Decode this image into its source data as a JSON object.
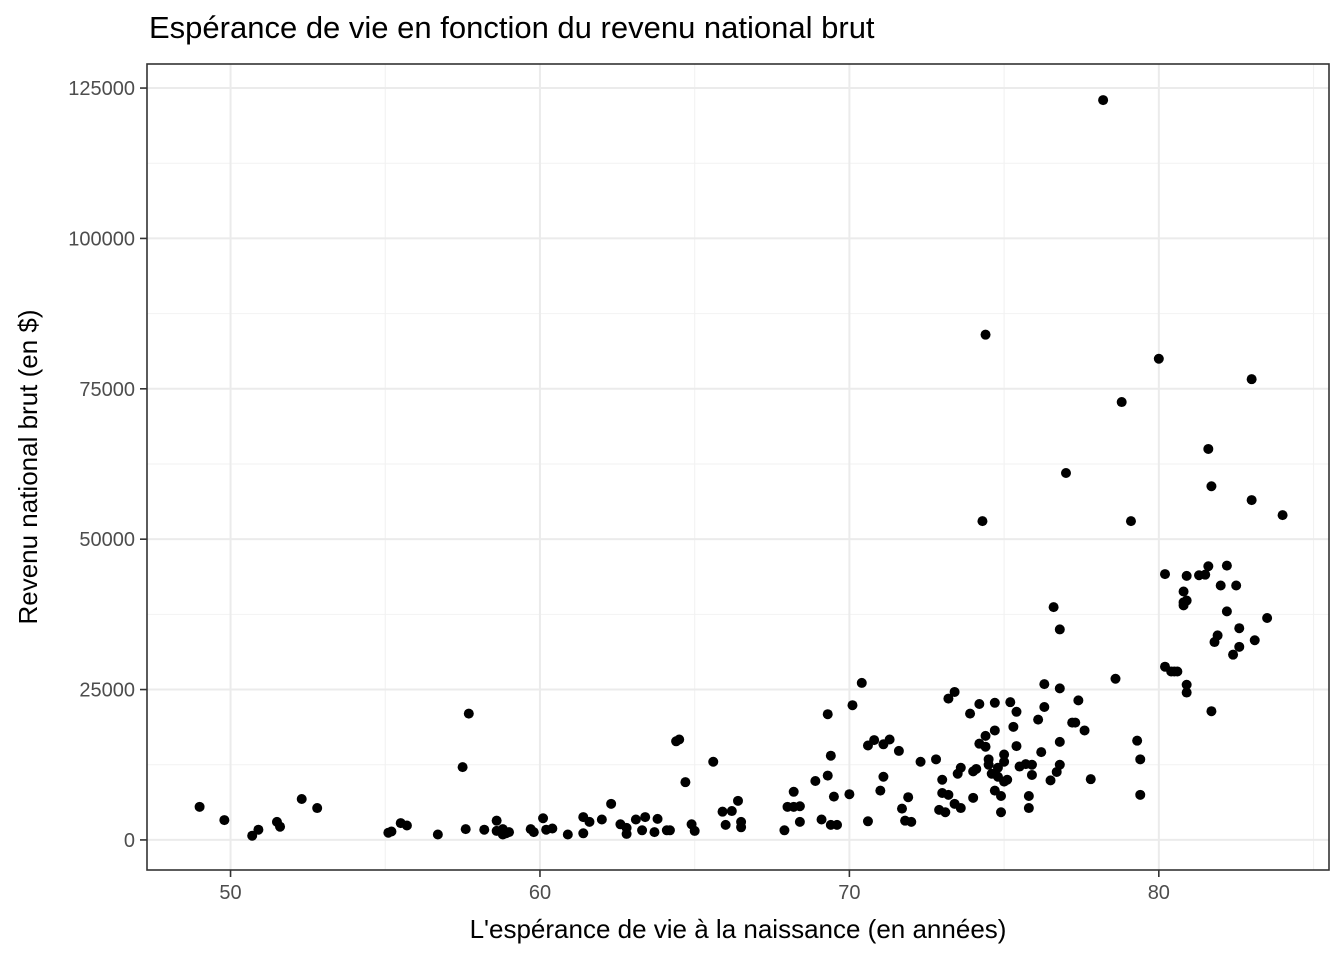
{
  "chart_data": {
    "type": "scatter",
    "title": "Espérance de vie en fonction du revenu national brut",
    "xlabel": "L'espérance de vie à la naissance (en années)",
    "ylabel": "Revenu national brut (en $)",
    "xlim": [
      47.3,
      85.5
    ],
    "ylim": [
      -5000,
      129000
    ],
    "x_ticks": [
      50,
      60,
      70,
      80
    ],
    "y_ticks": [
      0,
      25000,
      50000,
      75000,
      100000,
      125000
    ],
    "x_tick_labels": [
      "50",
      "60",
      "70",
      "80"
    ],
    "y_tick_labels": [
      "0",
      "25000",
      "50000",
      "75000",
      "100000",
      "125000"
    ],
    "grid": true,
    "point_color": "#000000",
    "points": [
      [
        49.0,
        5500
      ],
      [
        49.8,
        3300
      ],
      [
        50.7,
        700
      ],
      [
        50.9,
        1700
      ],
      [
        51.5,
        3000
      ],
      [
        51.6,
        2200
      ],
      [
        52.3,
        6800
      ],
      [
        52.8,
        5300
      ],
      [
        55.1,
        1200
      ],
      [
        55.2,
        1400
      ],
      [
        55.5,
        2800
      ],
      [
        55.7,
        2400
      ],
      [
        56.7,
        900
      ],
      [
        57.5,
        12100
      ],
      [
        57.6,
        1800
      ],
      [
        57.7,
        21000
      ],
      [
        58.2,
        1700
      ],
      [
        58.6,
        3200
      ],
      [
        58.6,
        1500
      ],
      [
        58.8,
        900
      ],
      [
        58.8,
        1800
      ],
      [
        58.9,
        1100
      ],
      [
        59.0,
        1300
      ],
      [
        59.7,
        1800
      ],
      [
        59.8,
        1300
      ],
      [
        60.1,
        3600
      ],
      [
        60.2,
        1700
      ],
      [
        60.4,
        1900
      ],
      [
        60.9,
        900
      ],
      [
        61.4,
        1100
      ],
      [
        61.4,
        3800
      ],
      [
        61.6,
        3000
      ],
      [
        62.0,
        3400
      ],
      [
        62.3,
        6000
      ],
      [
        62.6,
        2600
      ],
      [
        62.8,
        1000
      ],
      [
        62.8,
        2000
      ],
      [
        63.1,
        3400
      ],
      [
        63.3,
        1600
      ],
      [
        63.4,
        3800
      ],
      [
        63.7,
        1300
      ],
      [
        63.8,
        3500
      ],
      [
        64.1,
        1600
      ],
      [
        64.2,
        1600
      ],
      [
        64.4,
        16400
      ],
      [
        64.5,
        16700
      ],
      [
        64.7,
        9600
      ],
      [
        64.9,
        2600
      ],
      [
        65.0,
        1500
      ],
      [
        65.6,
        13000
      ],
      [
        65.9,
        4700
      ],
      [
        66.0,
        2500
      ],
      [
        66.2,
        4800
      ],
      [
        66.4,
        6500
      ],
      [
        66.5,
        3000
      ],
      [
        66.5,
        2100
      ],
      [
        67.9,
        1600
      ],
      [
        68.0,
        5500
      ],
      [
        68.2,
        8000
      ],
      [
        68.2,
        5500
      ],
      [
        68.4,
        5600
      ],
      [
        68.4,
        3000
      ],
      [
        68.9,
        9800
      ],
      [
        69.1,
        3400
      ],
      [
        69.3,
        10700
      ],
      [
        69.3,
        20900
      ],
      [
        69.4,
        14000
      ],
      [
        69.4,
        2500
      ],
      [
        69.5,
        7200
      ],
      [
        69.6,
        2500
      ],
      [
        70.0,
        7600
      ],
      [
        70.1,
        22400
      ],
      [
        70.4,
        26100
      ],
      [
        70.6,
        15700
      ],
      [
        70.6,
        3100
      ],
      [
        70.8,
        16600
      ],
      [
        71.0,
        8200
      ],
      [
        71.1,
        10500
      ],
      [
        71.1,
        15900
      ],
      [
        71.3,
        16700
      ],
      [
        71.6,
        14800
      ],
      [
        71.7,
        5200
      ],
      [
        71.8,
        3200
      ],
      [
        71.9,
        7100
      ],
      [
        72.0,
        3000
      ],
      [
        72.3,
        13000
      ],
      [
        72.8,
        13400
      ],
      [
        72.9,
        5000
      ],
      [
        73.0,
        10000
      ],
      [
        73.0,
        7800
      ],
      [
        73.1,
        4600
      ],
      [
        73.2,
        7500
      ],
      [
        73.2,
        23500
      ],
      [
        73.4,
        24600
      ],
      [
        73.4,
        6000
      ],
      [
        73.5,
        11000
      ],
      [
        73.6,
        5300
      ],
      [
        73.6,
        12000
      ],
      [
        73.9,
        21000
      ],
      [
        74.0,
        11400
      ],
      [
        74.0,
        7000
      ],
      [
        74.1,
        11800
      ],
      [
        74.2,
        16000
      ],
      [
        74.2,
        22600
      ],
      [
        74.3,
        53000
      ],
      [
        74.4,
        84000
      ],
      [
        74.4,
        15500
      ],
      [
        74.4,
        17300
      ],
      [
        74.5,
        13400
      ],
      [
        74.5,
        12500
      ],
      [
        74.6,
        11000
      ],
      [
        74.7,
        18200
      ],
      [
        74.7,
        22800
      ],
      [
        74.7,
        8200
      ],
      [
        74.8,
        10500
      ],
      [
        74.8,
        12000
      ],
      [
        74.9,
        7300
      ],
      [
        74.9,
        4600
      ],
      [
        75.0,
        13000
      ],
      [
        75.0,
        14200
      ],
      [
        75.0,
        9700
      ],
      [
        75.1,
        10000
      ],
      [
        75.2,
        22900
      ],
      [
        75.3,
        18800
      ],
      [
        75.4,
        21300
      ],
      [
        75.4,
        15600
      ],
      [
        75.5,
        12200
      ],
      [
        75.7,
        12600
      ],
      [
        75.8,
        7300
      ],
      [
        75.8,
        5300
      ],
      [
        75.9,
        12500
      ],
      [
        75.9,
        10800
      ],
      [
        76.1,
        20000
      ],
      [
        76.2,
        14600
      ],
      [
        76.3,
        25900
      ],
      [
        76.3,
        22100
      ],
      [
        76.5,
        9900
      ],
      [
        76.6,
        38700
      ],
      [
        76.7,
        11300
      ],
      [
        76.8,
        35000
      ],
      [
        76.8,
        25200
      ],
      [
        76.8,
        16300
      ],
      [
        76.8,
        12500
      ],
      [
        77.0,
        61000
      ],
      [
        77.2,
        19500
      ],
      [
        77.3,
        19500
      ],
      [
        77.4,
        23200
      ],
      [
        77.6,
        18200
      ],
      [
        77.8,
        10100
      ],
      [
        78.2,
        123000
      ],
      [
        78.6,
        26800
      ],
      [
        78.8,
        72800
      ],
      [
        79.1,
        53000
      ],
      [
        79.3,
        16500
      ],
      [
        79.4,
        13400
      ],
      [
        79.4,
        7500
      ],
      [
        80.0,
        80000
      ],
      [
        80.2,
        44200
      ],
      [
        80.2,
        28800
      ],
      [
        80.4,
        28000
      ],
      [
        80.5,
        28000
      ],
      [
        80.6,
        28000
      ],
      [
        80.8,
        39500
      ],
      [
        80.8,
        39000
      ],
      [
        80.8,
        41300
      ],
      [
        80.9,
        43900
      ],
      [
        80.9,
        39800
      ],
      [
        80.9,
        25800
      ],
      [
        80.9,
        24500
      ],
      [
        81.3,
        44000
      ],
      [
        81.5,
        44100
      ],
      [
        81.6,
        45500
      ],
      [
        81.6,
        65000
      ],
      [
        81.7,
        58800
      ],
      [
        81.7,
        21400
      ],
      [
        81.8,
        32900
      ],
      [
        81.9,
        34000
      ],
      [
        82.0,
        42300
      ],
      [
        82.2,
        45600
      ],
      [
        82.2,
        38000
      ],
      [
        82.4,
        30800
      ],
      [
        82.5,
        42300
      ],
      [
        82.6,
        32100
      ],
      [
        82.6,
        35200
      ],
      [
        83.0,
        76600
      ],
      [
        83.0,
        56500
      ],
      [
        83.1,
        33200
      ],
      [
        83.5,
        36900
      ],
      [
        84.0,
        54000
      ]
    ]
  }
}
